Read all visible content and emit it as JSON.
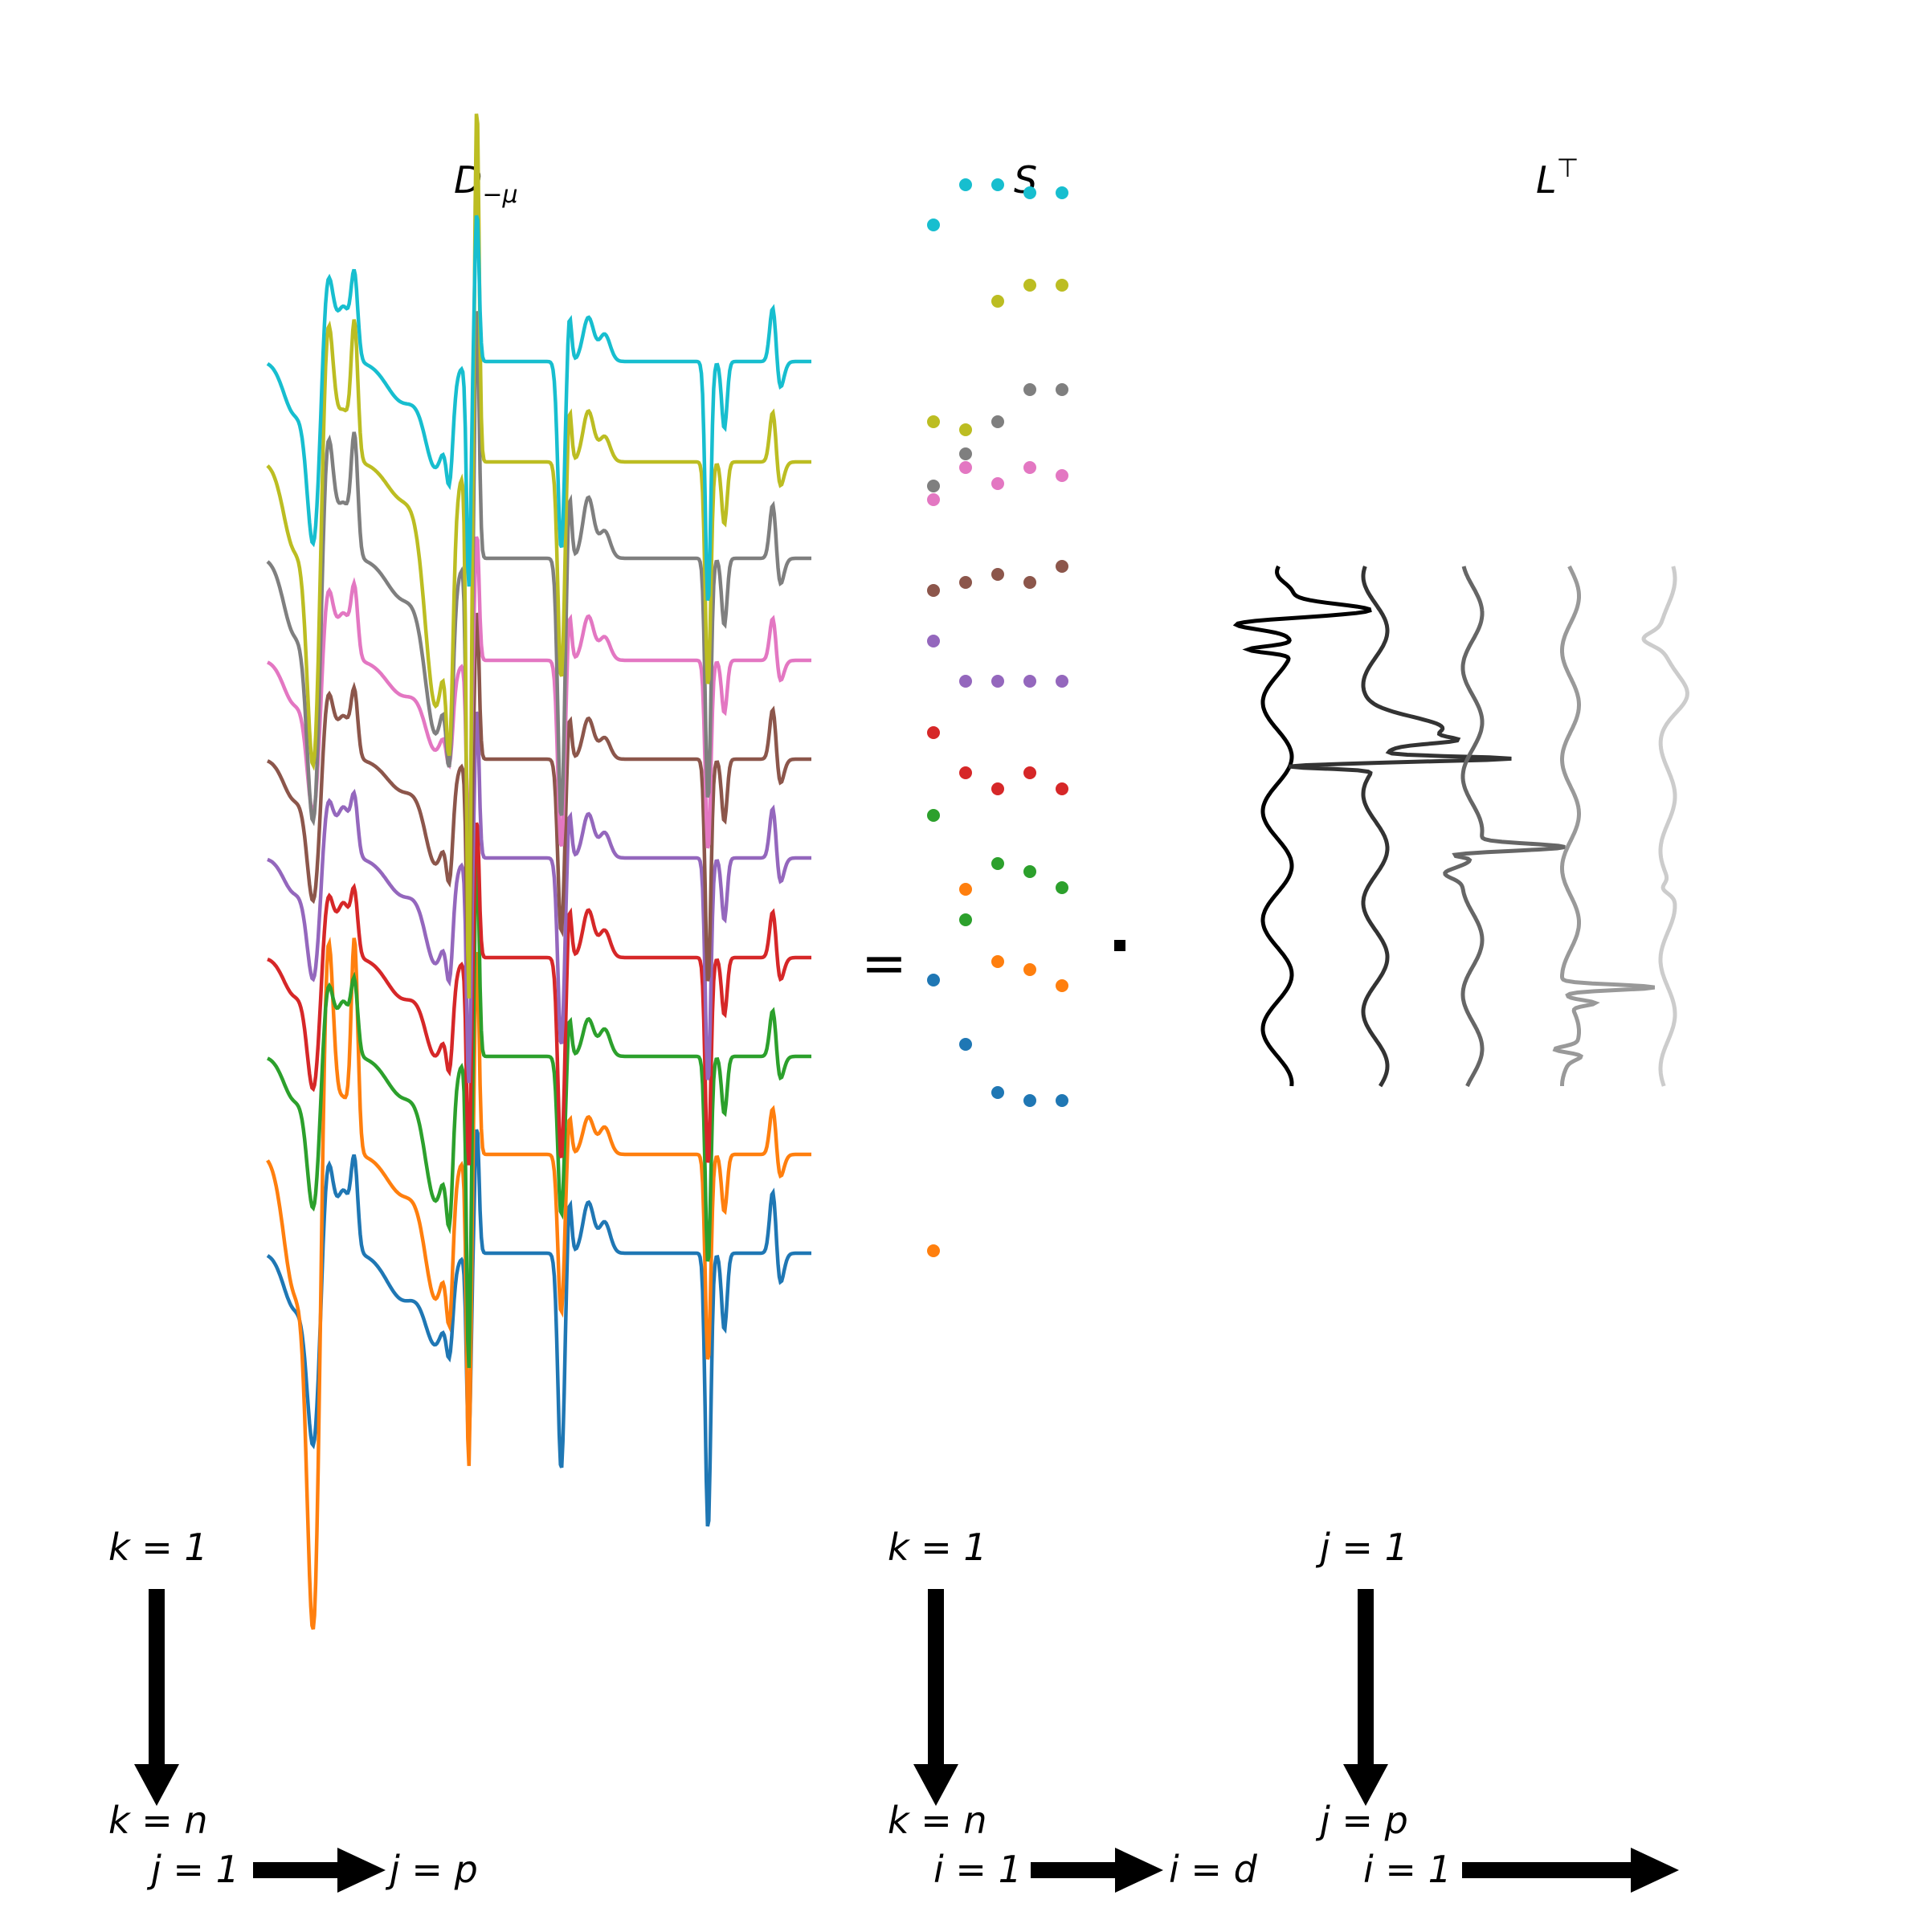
{
  "headers": {
    "D": {
      "base": "D",
      "sub": "−μ"
    },
    "S": "S",
    "L": {
      "base": "L",
      "sup": "⊤"
    }
  },
  "operators": {
    "equals": "=",
    "dot": "·"
  },
  "axis_labels": {
    "k_start_left": "k = 1",
    "k_end_left": "k = n",
    "j_start_bottom": "j = 1",
    "j_end_bottom": "j = p",
    "k_start_mid": "k = 1",
    "k_end_mid": "k = n",
    "i_start_mid": "i = 1",
    "i_end_mid": "i = d",
    "j_start_right": "j = 1",
    "j_end_right": "j = p",
    "i_start_right": "i = 1"
  },
  "colors": {
    "series": [
      "#1f77b4",
      "#ff7f0e",
      "#2ca02c",
      "#d62728",
      "#9467bd",
      "#8c564b",
      "#e377c2",
      "#7f7f7f",
      "#bcbd22",
      "#17becf"
    ],
    "loadings": [
      "#000000",
      "#333333",
      "#666666",
      "#999999",
      "#cccccc"
    ]
  },
  "scores": [
    [
      -0.9,
      -0.1,
      0.5,
      0.6,
      0.6
    ],
    [
      3.7,
      -0.8,
      0.1,
      0.2,
      0.4
    ],
    [
      -0.5,
      0.8,
      0.1,
      0.2,
      0.4
    ],
    [
      -0.3,
      0.2,
      0.4,
      0.2,
      0.4
    ],
    [
      -0.2,
      0.3,
      0.3,
      0.3,
      0.3
    ],
    [
      0.4,
      0.3,
      0.2,
      0.3,
      0.1
    ],
    [
      0.5,
      0.1,
      0.3,
      0.1,
      0.2
    ],
    [
      1.6,
      1.2,
      0.8,
      0.4,
      0.4
    ],
    [
      2.0,
      2.1,
      0.5,
      0.3,
      0.3
    ],
    [
      0.8,
      0.3,
      0.3,
      0.4,
      0.4
    ]
  ]
}
